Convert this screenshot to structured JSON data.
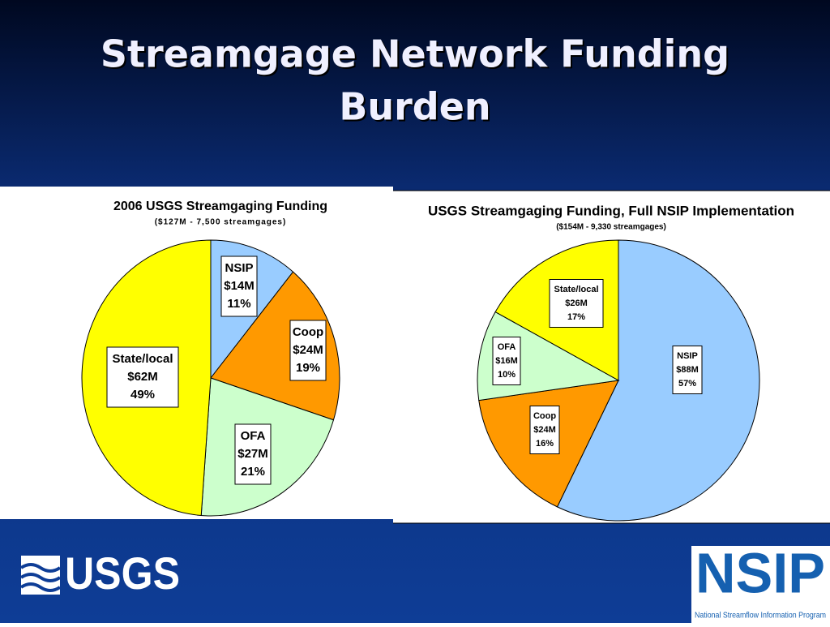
{
  "slide_title": [
    "Streamgage Network Funding",
    "Burden"
  ],
  "chart_data": [
    {
      "type": "pie",
      "title": "2006 USGS Streamgaging Funding",
      "subtitle": "($127M - 7,500 streamgages)",
      "categories": [
        "NSIP",
        "Coop",
        "OFA",
        "State/local"
      ],
      "values": [
        14,
        24,
        27,
        62
      ],
      "value_labels": [
        "$14M",
        "$24M",
        "$27M",
        "$62M"
      ],
      "percent_labels": [
        "11%",
        "19%",
        "21%",
        "49%"
      ],
      "colors": [
        "#99ccff",
        "#ff9900",
        "#ccffcc",
        "#ffff00"
      ]
    },
    {
      "type": "pie",
      "title": "USGS Streamgaging Funding, Full NSIP Implementation",
      "subtitle": "($154M - 9,330 streamgages)",
      "categories": [
        "NSIP",
        "Coop",
        "OFA",
        "State/local"
      ],
      "values": [
        88,
        24,
        16,
        26
      ],
      "value_labels": [
        "$88M",
        "$24M",
        "$16M",
        "$26M"
      ],
      "percent_labels": [
        "57%",
        "16%",
        "10%",
        "17%"
      ],
      "colors": [
        "#99ccff",
        "#ff9900",
        "#ccffcc",
        "#ffff00"
      ]
    }
  ],
  "logos": {
    "usgs": "USGS",
    "nsip": "NSIP",
    "nsip_caption": "National Streamflow Information Program"
  }
}
